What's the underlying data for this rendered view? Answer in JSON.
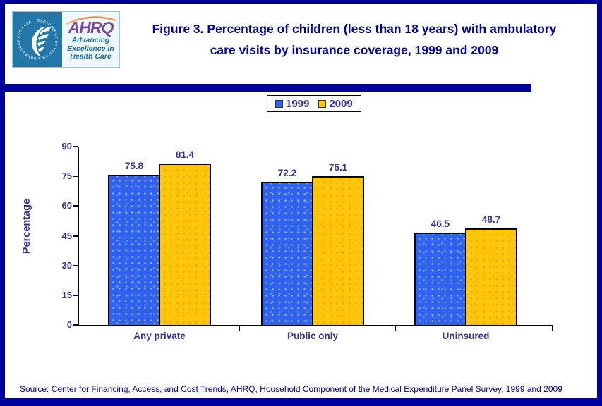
{
  "header": {
    "logo": {
      "hhs_ring_text": "DEPARTMENT OF HEALTH & HUMAN SERVICES • USA",
      "ahrq_acronym": "AHRQ",
      "tagline": [
        "Advancing",
        "Excellence in",
        "Health Care"
      ]
    },
    "title_line1": "Figure 3. Percentage of children (less than 18 years) with ambulatory",
    "title_line2": "care visits by insurance coverage, 1999 and 2009"
  },
  "chart_data": {
    "type": "bar",
    "title": "Figure 3. Percentage of children (less than 18 years) with ambulatory care visits by insurance coverage, 1999 and 2009",
    "categories": [
      "Any private",
      "Public only",
      "Uninsured"
    ],
    "series": [
      {
        "name": "1999",
        "color": "#2f63ef",
        "values": [
          75.8,
          72.2,
          46.5
        ]
      },
      {
        "name": "2009",
        "color": "#ffc60a",
        "values": [
          81.4,
          75.1,
          48.7
        ]
      }
    ],
    "xlabel": "",
    "ylabel": "Percentage",
    "ylim": [
      0,
      90
    ],
    "yticks": [
      0,
      15,
      30,
      45,
      60,
      75,
      90
    ],
    "grid": false,
    "legend_position": "top-center",
    "data_labels": true,
    "label_color": "#333399",
    "axis_color": "#000000"
  },
  "source": "Source: Center for Financing, Access, and Cost Trends, AHRQ, Household Component of the Medical Expenditure Panel Survey,  1999 and 2009",
  "colors": {
    "page_border": "#00009c",
    "divider": "#0000a0",
    "title_text": "#0000a0",
    "hhs_teal": "#2478a9",
    "ahrq_purple": "#7b4a9e",
    "tagline_blue": "#1a6fb0"
  }
}
